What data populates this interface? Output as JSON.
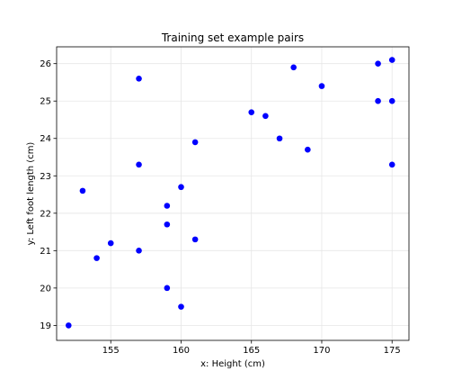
{
  "chart_data": {
    "type": "scatter",
    "title": "Training set example pairs",
    "xlabel": "x: Height (cm)",
    "ylabel": "y: Left foot length (cm)",
    "xlim": [
      151.15,
      176.2
    ],
    "ylim": [
      18.6,
      26.45
    ],
    "xticks": [
      155,
      160,
      165,
      170,
      175
    ],
    "yticks": [
      19,
      20,
      21,
      22,
      23,
      24,
      25,
      26
    ],
    "grid": true,
    "marker_color": "#0000ff",
    "points": [
      {
        "x": 152,
        "y": 19.0
      },
      {
        "x": 153,
        "y": 22.6
      },
      {
        "x": 154,
        "y": 20.8
      },
      {
        "x": 155,
        "y": 21.2
      },
      {
        "x": 157,
        "y": 25.6
      },
      {
        "x": 157,
        "y": 23.3
      },
      {
        "x": 157,
        "y": 21.0
      },
      {
        "x": 159,
        "y": 22.2
      },
      {
        "x": 159,
        "y": 21.7
      },
      {
        "x": 159,
        "y": 20.0
      },
      {
        "x": 160,
        "y": 22.7
      },
      {
        "x": 160,
        "y": 19.5
      },
      {
        "x": 161,
        "y": 23.9
      },
      {
        "x": 161,
        "y": 21.3
      },
      {
        "x": 165,
        "y": 24.7
      },
      {
        "x": 166,
        "y": 24.6
      },
      {
        "x": 167,
        "y": 24.0
      },
      {
        "x": 168,
        "y": 25.9
      },
      {
        "x": 169,
        "y": 23.7
      },
      {
        "x": 170,
        "y": 25.4
      },
      {
        "x": 174,
        "y": 26.0
      },
      {
        "x": 174,
        "y": 25.0
      },
      {
        "x": 175,
        "y": 26.1
      },
      {
        "x": 175,
        "y": 25.0
      },
      {
        "x": 175,
        "y": 23.3
      }
    ]
  }
}
